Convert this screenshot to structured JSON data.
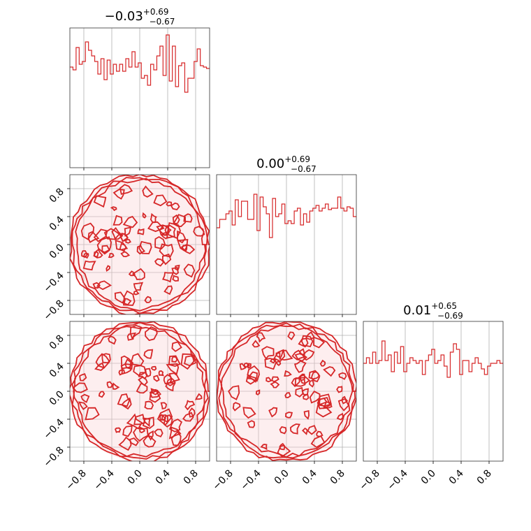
{
  "chart_data": {
    "type": "corner",
    "parameters": [
      {
        "title": {
          "median": "−0.03",
          "plus": "+0.69",
          "minus": "−0.67"
        },
        "hist_range": [
          -1,
          1
        ],
        "hist": [
          0.72,
          0.7,
          0.86,
          0.74,
          0.76,
          0.9,
          0.84,
          0.8,
          0.76,
          0.67,
          0.78,
          0.63,
          0.77,
          0.67,
          0.74,
          0.69,
          0.74,
          0.69,
          0.78,
          0.72,
          0.83,
          0.72,
          0.75,
          0.64,
          0.66,
          0.59,
          0.74,
          0.7,
          0.8,
          0.87,
          0.66,
          0.95,
          0.62,
          0.87,
          0.58,
          0.73,
          0.75,
          0.54,
          0.64,
          0.64,
          0.76,
          0.85,
          0.73,
          0.72,
          0.71
        ]
      },
      {
        "title": {
          "median": "0.00",
          "plus": "+0.69",
          "minus": "−0.67"
        },
        "hist_range": [
          -1,
          1
        ],
        "hist": [
          0.62,
          0.68,
          0.68,
          0.72,
          0.74,
          0.64,
          0.82,
          0.7,
          0.81,
          0.81,
          0.68,
          0.68,
          0.86,
          0.6,
          0.84,
          0.77,
          0.72,
          0.55,
          0.83,
          0.7,
          0.72,
          0.79,
          0.65,
          0.67,
          0.65,
          0.74,
          0.76,
          0.64,
          0.72,
          0.66,
          0.74,
          0.76,
          0.78,
          0.74,
          0.76,
          0.79,
          0.75,
          0.76,
          0.76,
          0.84,
          0.76,
          0.74,
          0.77,
          0.76,
          0.7
        ]
      },
      {
        "title": {
          "median": "0.01",
          "plus": "+0.65",
          "minus": "−0.69"
        },
        "hist_range": [
          -1,
          1
        ],
        "hist": [
          0.7,
          0.74,
          0.7,
          0.78,
          0.7,
          0.72,
          0.86,
          0.72,
          0.76,
          0.64,
          0.78,
          0.7,
          0.82,
          0.64,
          0.7,
          0.74,
          0.72,
          0.7,
          0.72,
          0.62,
          0.72,
          0.76,
          0.8,
          0.7,
          0.72,
          0.76,
          0.68,
          0.6,
          0.78,
          0.84,
          0.8,
          0.62,
          0.72,
          0.72,
          0.64,
          0.7,
          0.74,
          0.7,
          0.66,
          0.62,
          0.68,
          0.7,
          0.7,
          0.72,
          0.7
        ]
      }
    ],
    "pair_support": "uniform-disk",
    "disk_radius": 1.0,
    "axes": {
      "xlim": [
        -1,
        1
      ],
      "ylim": [
        -1,
        1
      ],
      "ticks": [
        -0.8,
        -0.4,
        0.0,
        0.4,
        0.8
      ],
      "tick_labels": [
        "−0.8",
        "−0.4",
        "0.0",
        "0.4",
        "0.8"
      ]
    },
    "grid": true,
    "color": "#d62728",
    "fill_light": "#f8cfd1"
  }
}
